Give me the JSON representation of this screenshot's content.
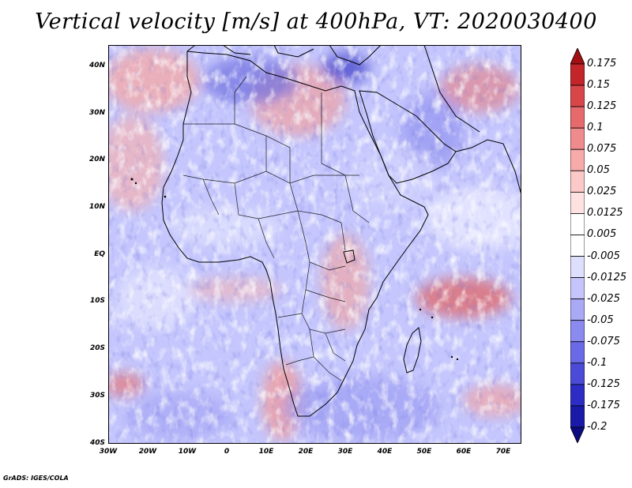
{
  "title": "Vertical velocity [m/s] at 400hPa, VT: 2020030400",
  "credit": "GrADS: IGES/COLA",
  "map": {
    "lon_range": [
      -30,
      75
    ],
    "lat_range": [
      -40,
      45
    ],
    "field": "vertical velocity at 400 hPa",
    "units": "m/s",
    "latitude_ticks": [
      "40N",
      "30N",
      "20N",
      "10N",
      "EQ",
      "10S",
      "20S",
      "30S",
      "40S"
    ],
    "longitude_ticks": [
      "30W",
      "20W",
      "10W",
      "0",
      "10E",
      "20E",
      "30E",
      "40E",
      "50E",
      "60E",
      "70E"
    ]
  },
  "colorbar": {
    "labels": [
      "0.175",
      "0.15",
      "0.125",
      "0.1",
      "0.075",
      "0.05",
      "0.025",
      "0.0125",
      "0.005",
      "-0.005",
      "-0.0125",
      "-0.025",
      "-0.05",
      "-0.075",
      "-0.1",
      "-0.125",
      "-0.175",
      "-0.2"
    ],
    "colors": [
      "#a30f13",
      "#c2262a",
      "#d8464a",
      "#e66a6c",
      "#ef8b8c",
      "#f6aaaa",
      "#fbc9c8",
      "#fde2e1",
      "#ffffff",
      "#ffffff",
      "#dedefd",
      "#c5c5fb",
      "#a9a9f5",
      "#8b8bef",
      "#6a6ae6",
      "#4b4bd8",
      "#2d2dc4",
      "#1a1aa8",
      "#0c0c80"
    ]
  }
}
